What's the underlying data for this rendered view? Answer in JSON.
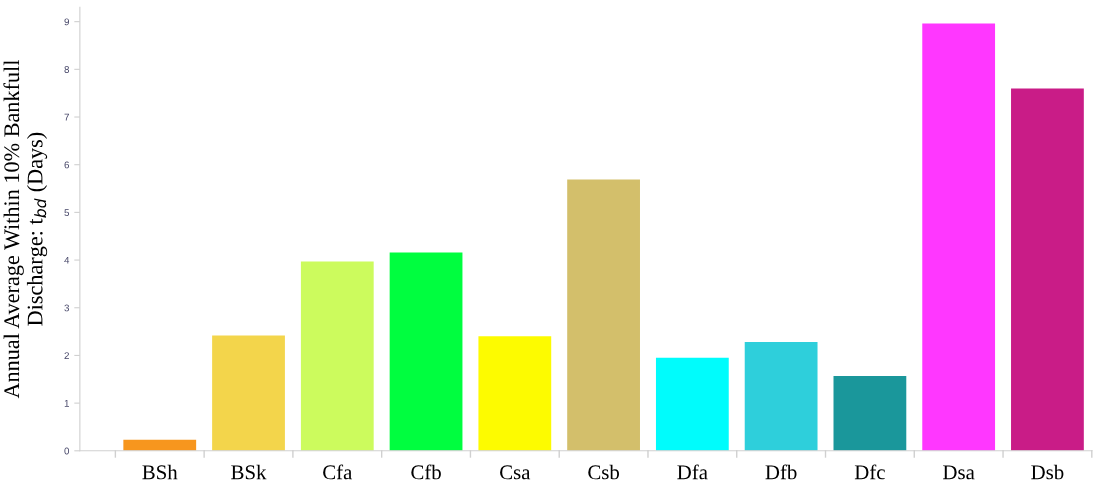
{
  "chart_data": {
    "type": "bar",
    "ylabel": "Annual Average Within 10% Bankfull\nDischarge: t$_{bd}$ (Days)",
    "categories": [
      "BSh",
      "BSk",
      "Cfa",
      "Cfb",
      "Csa",
      "Csb",
      "Dfa",
      "Dfb",
      "Dfc",
      "Dsa",
      "Dsb"
    ],
    "values": [
      0.23,
      2.42,
      3.97,
      4.16,
      2.4,
      5.69,
      1.95,
      2.28,
      1.57,
      8.96,
      7.6
    ],
    "colors": [
      "#f7961e",
      "#f3d54b",
      "#ccfb5d",
      "#00fe3f",
      "#fdfb00",
      "#d3bf6b",
      "#00fcfc",
      "#2ecfdb",
      "#1a979b",
      "#ff37ff",
      "#c91c87"
    ],
    "ylim": [
      0,
      9.3
    ],
    "yticks": [
      0,
      1,
      2,
      3,
      4,
      5,
      6,
      7,
      8,
      9
    ],
    "grid": false
  }
}
